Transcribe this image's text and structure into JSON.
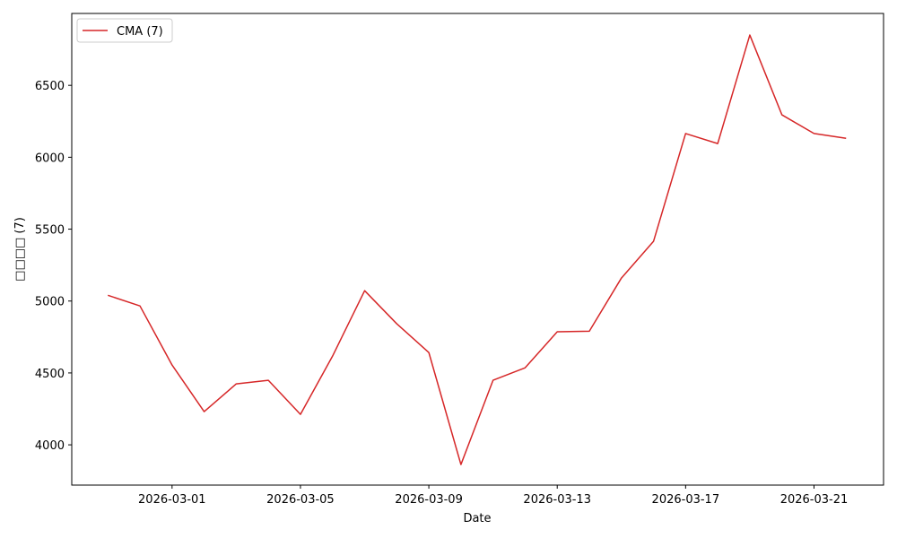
{
  "chart_data": {
    "type": "line",
    "xlabel": "Date",
    "ylabel": "□□□□ (7)",
    "x": [
      "2026-02-27",
      "2026-02-28",
      "2026-03-01",
      "2026-03-02",
      "2026-03-03",
      "2026-03-04",
      "2026-03-05",
      "2026-03-06",
      "2026-03-07",
      "2026-03-08",
      "2026-03-09",
      "2026-03-10",
      "2026-03-11",
      "2026-03-12",
      "2026-03-13",
      "2026-03-14",
      "2026-03-15",
      "2026-03-16",
      "2026-03-17",
      "2026-03-18",
      "2026-03-19",
      "2026-03-20",
      "2026-03-21",
      "2026-03-22"
    ],
    "series": [
      {
        "name": "CMA (7)",
        "color": "#d62728",
        "values": [
          5040,
          4966,
          4555,
          4231,
          4424,
          4449,
          4212,
          4617,
          5072,
          4842,
          4642,
          3863,
          4449,
          4536,
          4786,
          4790,
          5160,
          5415,
          6165,
          6095,
          6850,
          6295,
          6165,
          6132
        ]
      }
    ],
    "xlim": [
      "2026-02-25T21:00",
      "2026-03-23T04:00"
    ],
    "xticks": [
      "2026-03-01",
      "2026-03-05",
      "2026-03-09",
      "2026-03-13",
      "2026-03-17",
      "2026-03-21"
    ],
    "ylim": [
      3720,
      7000
    ],
    "yticks": [
      4000,
      4500,
      5000,
      5500,
      6000,
      6500
    ],
    "legend": "upper left",
    "grid": false
  }
}
